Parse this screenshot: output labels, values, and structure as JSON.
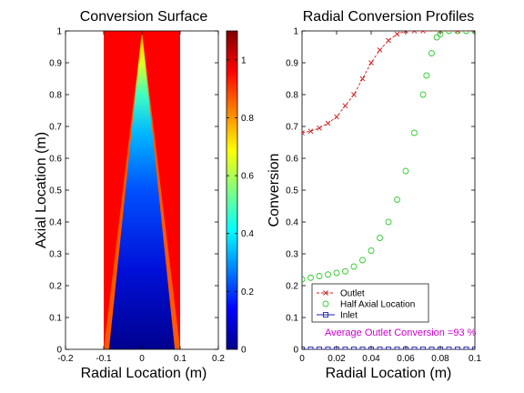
{
  "chart_data": [
    {
      "type": "heatmap",
      "title": "Conversion Surface",
      "xlabel": "Radial Location (m)",
      "ylabel": "Axial Location (m)",
      "xlim": [
        -0.2,
        0.2
      ],
      "ylim": [
        0,
        1
      ],
      "xticks": [
        "-0.2",
        "-0.1",
        "0",
        "0.1",
        "0.2"
      ],
      "yticks": [
        "0",
        "0.1",
        "0.2",
        "0.3",
        "0.4",
        "0.5",
        "0.6",
        "0.7",
        "0.8",
        "0.9",
        "1"
      ],
      "domain_x": [
        -0.1,
        0.1
      ],
      "colorbar": {
        "range": [
          0,
          1.1
        ],
        "ticks": [
          "0",
          "0.2",
          "0.4",
          "0.6",
          "0.8",
          "1"
        ],
        "colormap": "jet"
      },
      "surface_profile": {
        "radial": [
          0,
          0.01,
          0.02,
          0.03,
          0.04,
          0.05,
          0.06,
          0.07,
          0.08,
          0.09,
          0.1
        ],
        "outlet_conversion": [
          0.69,
          0.7,
          0.72,
          0.77,
          0.85,
          0.93,
          0.98,
          1.0,
          1.0,
          1.0,
          1.0
        ],
        "half_axial_conversion": [
          0.22,
          0.22,
          0.24,
          0.25,
          0.3,
          0.4,
          0.55,
          0.85,
          1.0,
          1.0,
          1.0
        ]
      }
    },
    {
      "type": "line",
      "title": "Radial Conversion Profiles",
      "xlabel": "Radial Location (m)",
      "ylabel": "Conversion",
      "xlim": [
        0,
        0.1
      ],
      "ylim": [
        0,
        1
      ],
      "xticks": [
        "0",
        "0.02",
        "0.04",
        "0.06",
        "0.08",
        "0.1"
      ],
      "yticks": [
        "0",
        "0.1",
        "0.2",
        "0.3",
        "0.4",
        "0.5",
        "0.6",
        "0.7",
        "0.8",
        "0.9",
        "1"
      ],
      "legend_position": "bottom-left",
      "annotation": "Average Outlet Conversion =93 %",
      "annotation_color": "#cc00cc",
      "series": [
        {
          "name": "Outlet",
          "color": "#cc2222",
          "marker": "x",
          "line": "dashed",
          "x": [
            0,
            0.005,
            0.01,
            0.015,
            0.02,
            0.025,
            0.03,
            0.035,
            0.04,
            0.045,
            0.05,
            0.055,
            0.06,
            0.065,
            0.07,
            0.08,
            0.09,
            0.1
          ],
          "y": [
            0.68,
            0.685,
            0.695,
            0.71,
            0.73,
            0.765,
            0.8,
            0.85,
            0.9,
            0.94,
            0.97,
            0.99,
            1.0,
            1.0,
            1.0,
            1.0,
            1.0,
            1.0
          ]
        },
        {
          "name": "Half Axial Location",
          "color": "#33cc33",
          "marker": "o",
          "line": "none",
          "x": [
            0,
            0.005,
            0.01,
            0.015,
            0.02,
            0.025,
            0.03,
            0.035,
            0.04,
            0.045,
            0.05,
            0.055,
            0.06,
            0.065,
            0.07,
            0.072,
            0.075,
            0.078,
            0.08,
            0.085,
            0.09,
            0.095,
            0.1
          ],
          "y": [
            0.22,
            0.225,
            0.23,
            0.235,
            0.24,
            0.245,
            0.26,
            0.28,
            0.31,
            0.35,
            0.4,
            0.47,
            0.56,
            0.68,
            0.8,
            0.86,
            0.93,
            0.98,
            0.99,
            1.0,
            1.0,
            1.0,
            1.0
          ]
        },
        {
          "name": "Inlet",
          "color": "#2222aa",
          "marker": "s",
          "line": "solid",
          "x": [
            0,
            0.005,
            0.01,
            0.015,
            0.02,
            0.025,
            0.03,
            0.035,
            0.04,
            0.045,
            0.05,
            0.055,
            0.06,
            0.065,
            0.07,
            0.075,
            0.08,
            0.085,
            0.09,
            0.095,
            0.1
          ],
          "y": [
            0,
            0,
            0,
            0,
            0,
            0,
            0,
            0,
            0,
            0,
            0,
            0,
            0,
            0,
            0,
            0,
            0,
            0,
            0,
            0,
            0
          ]
        }
      ]
    }
  ]
}
